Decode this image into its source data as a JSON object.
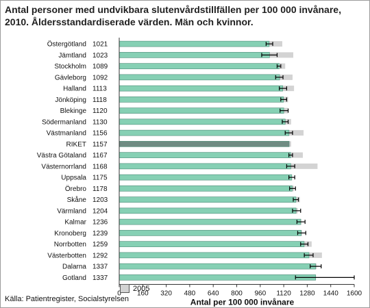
{
  "title": "Antal personer med undvikbara slutenvårdstillfällen per 100 000 invånare, 2010. Åldersstandardiserade värden.  Män och kvinnor.",
  "legend_label": "2005",
  "source": "Källa: Patientregister, Socialstyrelsen",
  "colors": {
    "bar": "#86d0b4",
    "bar_edge": "#4c8c78",
    "riket": "#6f8c83",
    "bar_2005": "#d3d3d3",
    "error": "#000000"
  },
  "chart_data": {
    "type": "bar",
    "orientation": "horizontal",
    "categories": [
      "Östergötland",
      "Jämtland",
      "Stockholm",
      "Gävleborg",
      "Halland",
      "Jönköping",
      "Blekinge",
      "Södermanland",
      "Västmanland",
      "RIKET",
      "Västra Götaland",
      "Västernorrland",
      "Uppsala",
      "Örebro",
      "Skåne",
      "Värmland",
      "Kalmar",
      "Kronoberg",
      "Norrbotten",
      "Västerbotten",
      "Dalarna",
      "Gotland"
    ],
    "value_labels": [
      "1021",
      "1023",
      "1089",
      "1092",
      "1113",
      "1118",
      "1120",
      "1130",
      "1156",
      "1157",
      "1167",
      "1168",
      "1175",
      "1178",
      "1203",
      "1204",
      "1236",
      "1239",
      "1259",
      "1292",
      "1337",
      "1337"
    ],
    "series": [
      {
        "values": [
          1021,
          1023,
          1089,
          1092,
          1113,
          1118,
          1120,
          1130,
          1156,
          1157,
          1167,
          1168,
          1175,
          1178,
          1203,
          1204,
          1236,
          1239,
          1259,
          1292,
          1337,
          1337
        ]
      },
      {
        "name": "2005",
        "values": [
          1110,
          1185,
          1130,
          1180,
          1190,
          1150,
          1150,
          1170,
          1255,
          1170,
          1250,
          1350,
          1165,
          1190,
          1230,
          1215,
          1240,
          1245,
          1310,
          1380,
          1345,
          1340
        ]
      }
    ],
    "error_low": [
      1000,
      970,
      1075,
      1065,
      1090,
      1100,
      1095,
      1110,
      1130,
      1157,
      1155,
      1140,
      1155,
      1160,
      1185,
      1180,
      1210,
      1215,
      1235,
      1260,
      1300,
      1200
    ],
    "error_high": [
      1045,
      1075,
      1100,
      1115,
      1140,
      1140,
      1150,
      1150,
      1180,
      1157,
      1180,
      1195,
      1195,
      1200,
      1220,
      1235,
      1265,
      1270,
      1285,
      1320,
      1375,
      1600
    ],
    "xlabel": "Antal per 100 000 invånare",
    "xlim": [
      0,
      1600
    ],
    "xticks": [
      0,
      160,
      320,
      480,
      640,
      800,
      960,
      1120,
      1280,
      1440,
      1600
    ]
  }
}
